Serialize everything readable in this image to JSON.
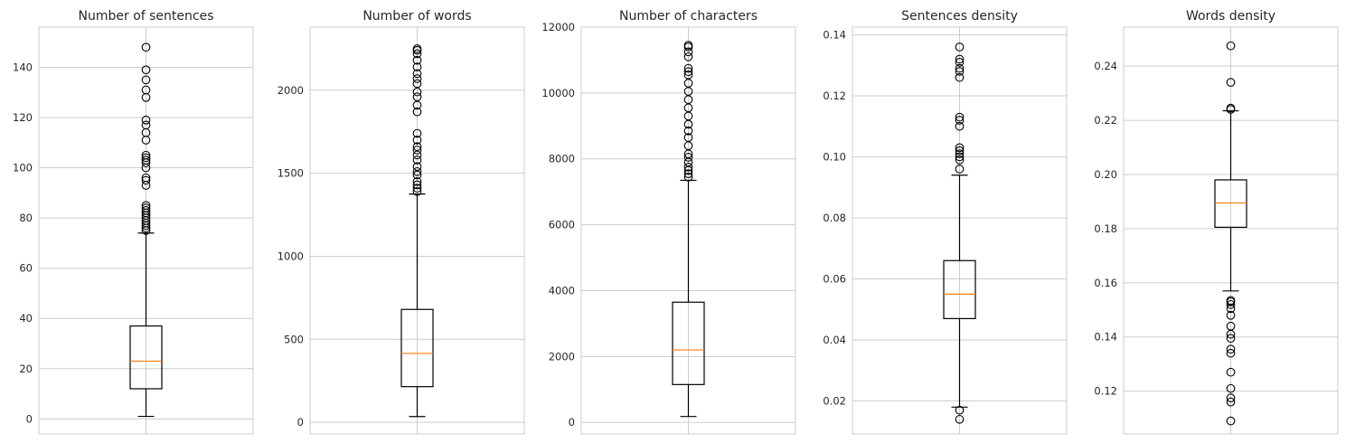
{
  "chart_data": [
    {
      "type": "boxplot",
      "title": "Number of sentences",
      "ylim": [
        -6,
        156
      ],
      "yticks": [
        0,
        20,
        40,
        60,
        80,
        100,
        120,
        140
      ],
      "ytick_labels": [
        "0",
        "20",
        "40",
        "60",
        "80",
        "100",
        "120",
        "140"
      ],
      "box": {
        "whisker_low": 1,
        "q1": 12,
        "median": 23,
        "q3": 37,
        "whisker_high": 74
      },
      "outliers": [
        75,
        76,
        77,
        78,
        79,
        80,
        81,
        82,
        83,
        84,
        85,
        93,
        95,
        96,
        100,
        102,
        103,
        104,
        105,
        111,
        114,
        117,
        119,
        128,
        131,
        135,
        139,
        148
      ]
    },
    {
      "type": "boxplot",
      "title": "Number of words",
      "ylim": [
        -70,
        2380
      ],
      "yticks": [
        0,
        500,
        1000,
        1500,
        2000
      ],
      "ytick_labels": [
        "0",
        "500",
        "1000",
        "1500",
        "2000"
      ],
      "box": {
        "whisker_low": 35,
        "q1": 215,
        "median": 415,
        "q3": 680,
        "whisker_high": 1375
      },
      "outliers": [
        1390,
        1410,
        1430,
        1450,
        1490,
        1510,
        1540,
        1580,
        1610,
        1640,
        1660,
        1700,
        1740,
        1870,
        1910,
        1960,
        1990,
        2040,
        2070,
        2100,
        2140,
        2180,
        2220,
        2240,
        2250
      ]
    },
    {
      "type": "boxplot",
      "title": "Number of characters",
      "ylim": [
        -350,
        12000
      ],
      "yticks": [
        0,
        2000,
        4000,
        6000,
        8000,
        10000,
        12000
      ],
      "ytick_labels": [
        "0",
        "2000",
        "4000",
        "6000",
        "8000",
        "10000",
        "12000"
      ],
      "box": {
        "whisker_low": 180,
        "q1": 1150,
        "median": 2200,
        "q3": 3650,
        "whisker_high": 7350
      },
      "outliers": [
        7450,
        7550,
        7650,
        7750,
        7900,
        8050,
        8150,
        8400,
        8650,
        8850,
        9050,
        9300,
        9550,
        9800,
        10050,
        10300,
        10550,
        10650,
        10750,
        11100,
        11250,
        11400,
        11450
      ]
    },
    {
      "type": "boxplot",
      "title": "Sentences density",
      "ylim": [
        0.0092,
        0.1425
      ],
      "yticks": [
        0.02,
        0.04,
        0.06,
        0.08,
        0.1,
        0.12,
        0.14
      ],
      "ytick_labels": [
        "0.02",
        "0.04",
        "0.06",
        "0.08",
        "0.10",
        "0.12",
        "0.14"
      ],
      "box": {
        "whisker_low": 0.018,
        "q1": 0.047,
        "median": 0.055,
        "q3": 0.066,
        "whisker_high": 0.094
      },
      "outliers": [
        0.014,
        0.017,
        0.096,
        0.099,
        0.1,
        0.101,
        0.102,
        0.103,
        0.11,
        0.112,
        0.113,
        0.126,
        0.128,
        0.129,
        0.131,
        0.132,
        0.136
      ]
    },
    {
      "type": "boxplot",
      "title": "Words density",
      "ylim": [
        0.1042,
        0.2544
      ],
      "yticks": [
        0.12,
        0.14,
        0.16,
        0.18,
        0.2,
        0.22,
        0.24
      ],
      "ytick_labels": [
        "0.12",
        "0.14",
        "0.16",
        "0.18",
        "0.20",
        "0.22",
        "0.24"
      ],
      "box": {
        "whisker_low": 0.157,
        "q1": 0.1805,
        "median": 0.1895,
        "q3": 0.198,
        "whisker_high": 0.2235
      },
      "outliers": [
        0.109,
        0.116,
        0.1175,
        0.121,
        0.127,
        0.134,
        0.1355,
        0.1395,
        0.141,
        0.144,
        0.148,
        0.1505,
        0.152,
        0.153,
        0.1535,
        0.224,
        0.2245,
        0.234,
        0.2475
      ]
    }
  ],
  "colors": {
    "background": "#ffffff",
    "grid": "#cccccc",
    "spine": "#cccccc",
    "box": "#000000",
    "median": "#ff7f0e",
    "text": "#262626"
  }
}
